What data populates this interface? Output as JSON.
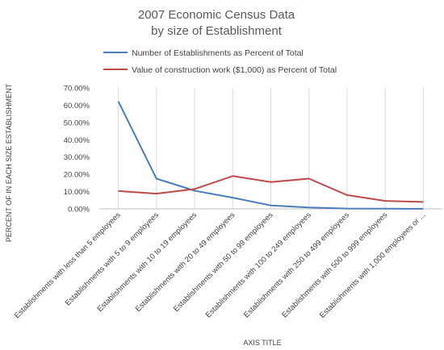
{
  "chart_data": {
    "type": "line",
    "title_lines": [
      "2007 Economic Census Data",
      "by size of Establishment"
    ],
    "ylabel": "PERCENT OF IN EACH SIZE ESTABLISHMENT",
    "xlabel": "AXIS TITLE",
    "ylim": [
      0,
      0.7
    ],
    "yticks": [
      "0.00%",
      "10.00%",
      "20.00%",
      "30.00%",
      "40.00%",
      "50.00%",
      "60.00%",
      "70.00%"
    ],
    "grid": "vertical",
    "legend_position": "top",
    "categories": [
      "Establishments with less than 5 employees",
      "Establishments  with 5 to 9 employees",
      "Establishments  with 10 to 19 employees",
      "Establishments  with 20 to 49 employees",
      "Establishments  with 50 to 99 employees",
      "Establishments with 100 to 249 employees",
      "Establishments  with 250 to 499 employees",
      "Establishments  with 500 to 999 employees",
      "Establishments  with 1,000 employees or ..."
    ],
    "series": [
      {
        "name": "Number of Establishments as Percent of Total",
        "color": "#4a7ebb",
        "values": [
          0.622,
          0.175,
          0.105,
          0.065,
          0.02,
          0.008,
          0.002,
          0.0008,
          0.0005
        ]
      },
      {
        "name": "Value of construction work ($1,000) as Percent of Total",
        "color": "#be4b48",
        "values": [
          0.103,
          0.088,
          0.115,
          0.19,
          0.155,
          0.175,
          0.08,
          0.046,
          0.04
        ]
      }
    ]
  }
}
